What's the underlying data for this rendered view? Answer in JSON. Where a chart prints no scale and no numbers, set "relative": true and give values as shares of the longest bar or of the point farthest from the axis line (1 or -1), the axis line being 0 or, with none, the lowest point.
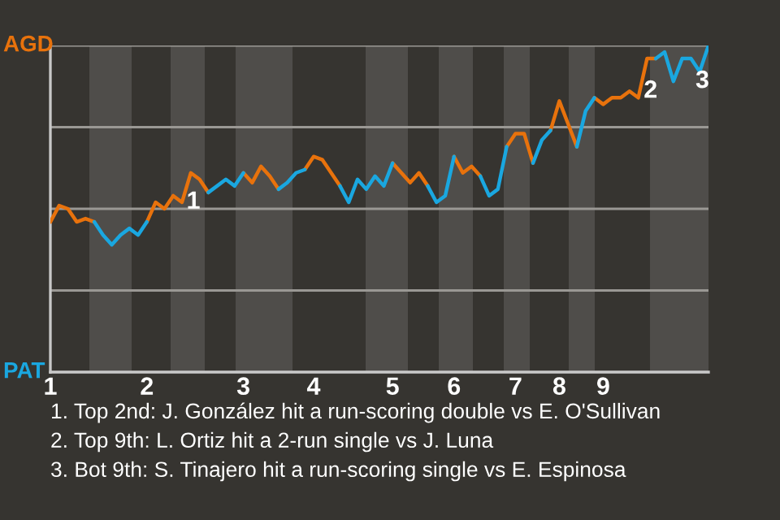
{
  "chart_data": {
    "type": "line",
    "relative": true,
    "categories": [
      "1",
      null,
      null,
      null,
      null,
      null,
      null,
      null,
      null,
      null,
      null,
      "2",
      null,
      null,
      null,
      null,
      null,
      null,
      null,
      null,
      null,
      null,
      "3",
      null,
      null,
      null,
      null,
      null,
      null,
      null,
      "4",
      null,
      null,
      null,
      null,
      null,
      null,
      null,
      null,
      "5",
      null,
      null,
      null,
      null,
      null,
      null,
      "6",
      null,
      null,
      null,
      null,
      null,
      null,
      "7",
      null,
      null,
      null,
      null,
      "8",
      null,
      null,
      null,
      null,
      "9",
      null,
      null,
      null,
      null,
      null,
      null,
      null,
      null,
      null,
      null,
      null,
      null
    ],
    "series": [
      {
        "color": "#e8720c",
        "values": [
          0.46,
          0.51,
          0.5,
          0.46,
          0.47,
          0.46,
          null,
          null,
          null,
          null,
          null,
          0.46,
          0.52,
          0.5,
          0.54,
          0.52,
          0.61,
          0.59,
          0.55,
          null,
          null,
          null,
          0.61,
          0.58,
          0.63,
          0.6,
          0.56,
          null,
          null,
          0.62,
          0.66,
          0.65,
          0.61,
          0.57,
          null,
          null,
          null,
          null,
          null,
          0.64,
          0.61,
          0.58,
          0.61,
          0.57,
          null,
          null,
          0.66,
          0.61,
          0.63,
          0.6,
          null,
          null,
          0.69,
          0.73,
          0.73,
          0.64,
          null,
          0.74,
          0.83,
          0.76,
          0.69,
          null,
          0.84,
          0.82,
          0.84,
          0.84,
          0.86,
          0.84,
          0.96,
          0.96,
          null,
          null,
          null,
          null,
          null,
          null
        ]
      },
      {
        "color": "#1aa7e0",
        "values": [
          null,
          null,
          null,
          null,
          null,
          0.46,
          0.42,
          0.39,
          0.42,
          0.44,
          0.42,
          0.46,
          null,
          null,
          null,
          null,
          null,
          null,
          0.55,
          0.57,
          0.59,
          0.57,
          0.61,
          null,
          null,
          null,
          0.56,
          0.58,
          0.61,
          0.62,
          null,
          null,
          null,
          0.57,
          0.52,
          0.59,
          0.56,
          0.6,
          0.57,
          0.64,
          null,
          null,
          null,
          0.57,
          0.52,
          0.54,
          0.66,
          null,
          null,
          0.6,
          0.54,
          0.56,
          0.69,
          null,
          null,
          0.64,
          0.71,
          0.74,
          null,
          null,
          0.69,
          0.8,
          0.84,
          null,
          null,
          null,
          null,
          null,
          null,
          0.96,
          0.98,
          0.89,
          0.96,
          0.96,
          0.92,
          1.0
        ]
      }
    ],
    "grid": "y",
    "annotations": [
      "AGD",
      "PAT",
      "1",
      "2",
      "3",
      "1. Top 2nd: J. González hit a run-scoring double vs E. O'Sullivan",
      "2. Top 9th: L. Ortiz hit a 2-run single vs J. Luna",
      "3. Bot 9th: S. Tinajero hit a run-scoring single vs E. Espinosa"
    ]
  }
}
